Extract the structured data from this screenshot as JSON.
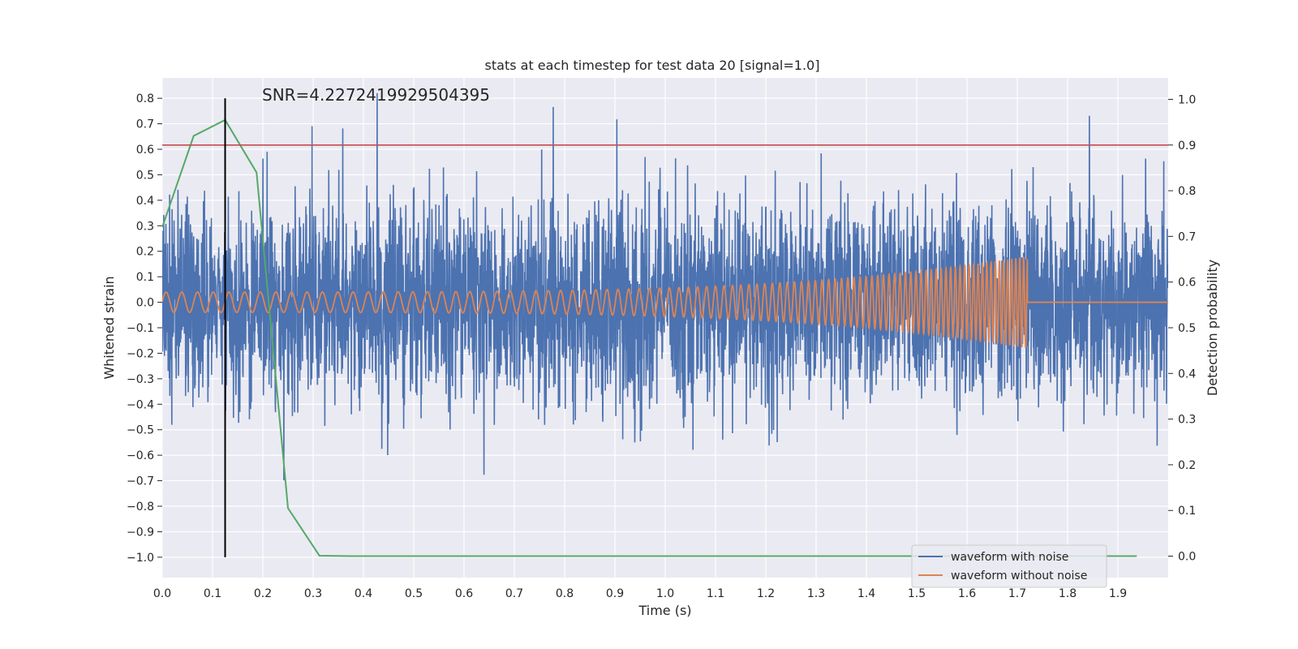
{
  "chart_data": {
    "type": "line",
    "title": "stats at each timestep for test data 20 [signal=1.0]",
    "annotation": "SNR=4.2272419929504395",
    "xlabel": "Time (s)",
    "ylabel_left": "Whitened strain",
    "ylabel_right": "Detection probability",
    "xlim": [
      0.0,
      2.0
    ],
    "ylim_left": [
      -1.08,
      0.88
    ],
    "ylim_right": [
      -0.047,
      1.047
    ],
    "x_ticks": [
      "0.0",
      "0.1",
      "0.2",
      "0.3",
      "0.4",
      "0.5",
      "0.6",
      "0.7",
      "0.8",
      "0.9",
      "1.0",
      "1.1",
      "1.2",
      "1.3",
      "1.4",
      "1.5",
      "1.6",
      "1.7",
      "1.8",
      "1.9"
    ],
    "y_left_ticks": [
      "0.8",
      "0.7",
      "0.6",
      "0.5",
      "0.4",
      "0.3",
      "0.2",
      "0.1",
      "0.0",
      "−0.1",
      "−0.2",
      "−0.3",
      "−0.4",
      "−0.5",
      "−0.6",
      "−0.7",
      "−0.8",
      "−0.9",
      "−1.0"
    ],
    "y_right_ticks": [
      "1.0",
      "0.9",
      "0.8",
      "0.7",
      "0.6",
      "0.5",
      "0.4",
      "0.3",
      "0.2",
      "0.1",
      "0.0"
    ],
    "legend": [
      "waveform with noise",
      "waveform without noise"
    ],
    "legend_position": "lower-right",
    "colors": {
      "noise": "#4c72b0",
      "clean": "#dd8452",
      "probability": "#55a868",
      "threshold": "#c44e52",
      "marker": "#000000",
      "axes_bg": "#eaeaf2",
      "grid": "#ffffff"
    },
    "threshold_probability": 0.9,
    "marker_time": 0.125,
    "noise_std": 0.2,
    "noise_sample_rate": 2048,
    "clean_signal": {
      "amplitude_start": 0.04,
      "amplitude_peak": 0.18,
      "freq_start_hz": 32,
      "freq_end_hz": 130,
      "merger_time": 1.72
    },
    "detection_probability": {
      "x": [
        0.0,
        0.0625,
        0.125,
        0.1875,
        0.25,
        0.3125,
        0.375,
        0.4375,
        0.5,
        0.5625,
        0.625,
        0.6875,
        0.75,
        0.8125,
        0.875,
        0.9375,
        1.0,
        1.0625,
        1.125,
        1.1875,
        1.25,
        1.3125,
        1.375,
        1.4375,
        1.5,
        1.5625,
        1.625,
        1.6875,
        1.75,
        1.8125,
        1.875,
        1.9375
      ],
      "y": [
        0.72,
        0.92,
        0.955,
        0.84,
        0.105,
        0.001,
        0.0,
        0.0,
        0.0,
        0.0,
        0.0,
        0.0,
        0.0,
        0.0,
        0.0,
        0.0,
        0.0,
        0.0,
        0.0,
        0.0,
        0.0,
        0.0,
        0.0,
        0.0,
        0.0,
        0.0,
        0.0,
        0.0,
        0.0,
        0.0,
        0.0,
        0.0
      ]
    }
  }
}
